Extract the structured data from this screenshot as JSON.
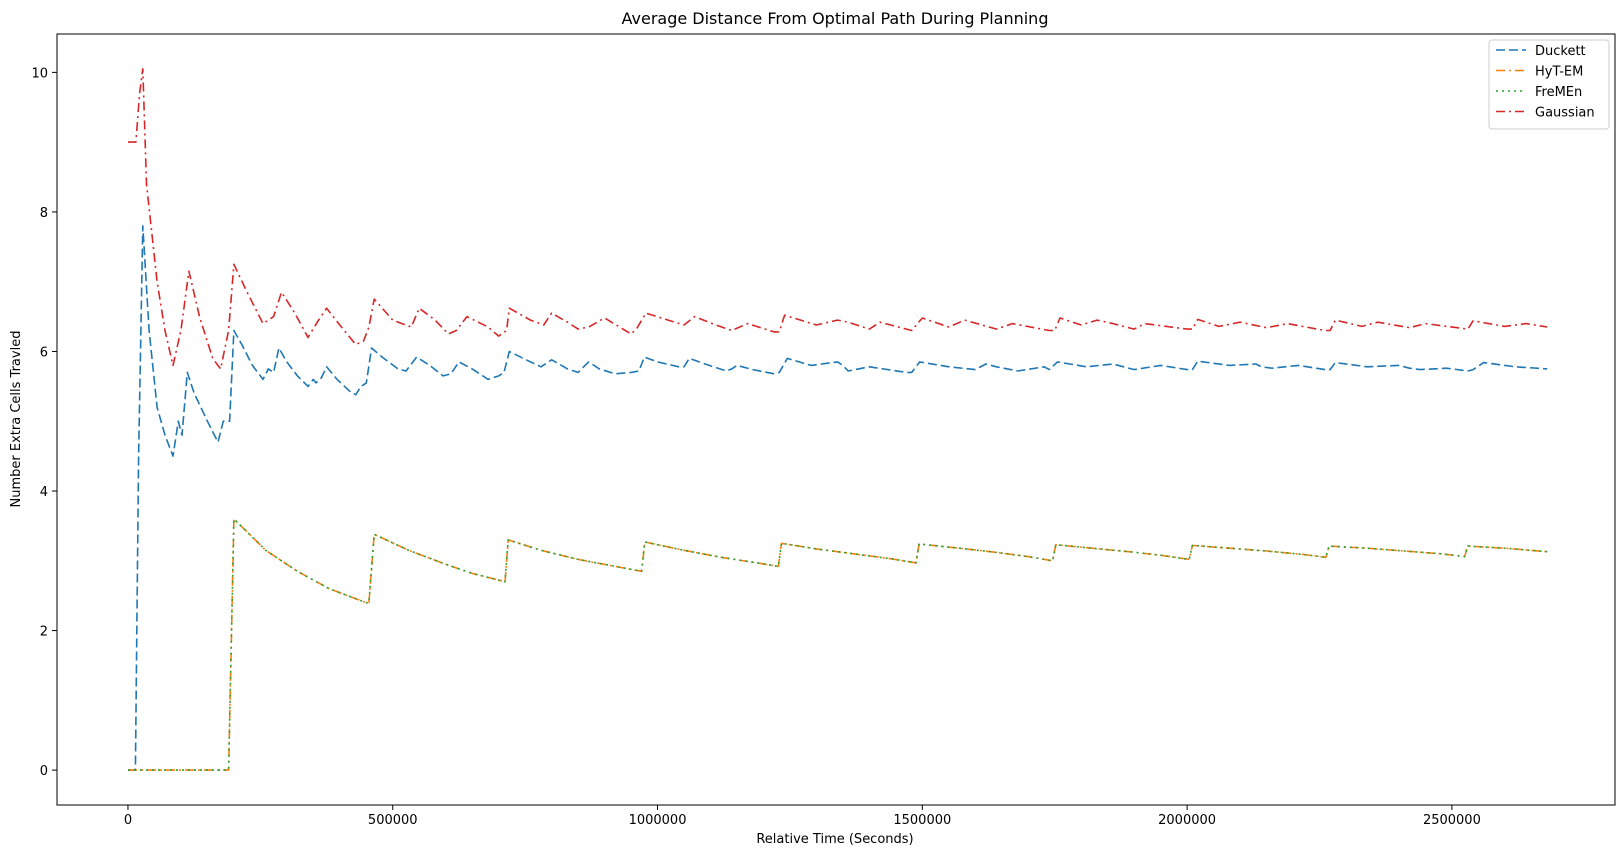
{
  "chart_data": {
    "type": "line",
    "title": "Average Distance From Optimal Path During Planning",
    "xlabel": "Relative Time (Seconds)",
    "ylabel": "Number Extra Cells Travled",
    "xlim": [
      -134000,
      2808000
    ],
    "ylim": [
      -0.5,
      10.55
    ],
    "xticks": [
      0,
      500000,
      1000000,
      1500000,
      2000000,
      2500000
    ],
    "xtick_labels": [
      "0",
      "500000",
      "1000000",
      "1500000",
      "2000000",
      "2500000"
    ],
    "yticks": [
      0,
      2,
      4,
      6,
      8,
      10
    ],
    "ytick_labels": [
      "0",
      "2",
      "4",
      "6",
      "8",
      "10"
    ],
    "grid": false,
    "legend_position": "top-right",
    "series": [
      {
        "name": "Duckett",
        "color": "#1f77b4",
        "dash": "dashed",
        "x": [
          0,
          14000,
          20000,
          28000,
          40000,
          55000,
          70000,
          85000,
          95000,
          102000,
          112000,
          125000,
          150000,
          170000,
          180000,
          185000,
          192000,
          200000,
          215000,
          235000,
          255000,
          265000,
          275000,
          285000,
          300000,
          320000,
          340000,
          350000,
          355000,
          365000,
          375000,
          395000,
          420000,
          430000,
          440000,
          450000,
          460000,
          480000,
          510000,
          525000,
          545000,
          570000,
          595000,
          610000,
          625000,
          650000,
          680000,
          700000,
          710000,
          720000,
          760000,
          780000,
          800000,
          830000,
          850000,
          870000,
          890000,
          920000,
          950000,
          965000,
          975000,
          1000000,
          1040000,
          1050000,
          1060000,
          1090000,
          1130000,
          1140000,
          1150000,
          1180000,
          1220000,
          1230000,
          1245000,
          1290000,
          1340000,
          1350000,
          1360000,
          1400000,
          1470000,
          1480000,
          1495000,
          1550000,
          1600000,
          1620000,
          1640000,
          1680000,
          1730000,
          1740000,
          1755000,
          1810000,
          1860000,
          1880000,
          1900000,
          1950000,
          2000000,
          2010000,
          2020000,
          2080000,
          2130000,
          2140000,
          2160000,
          2210000,
          2260000,
          2270000,
          2280000,
          2340000,
          2400000,
          2420000,
          2440000,
          2490000,
          2530000,
          2540000,
          2560000,
          2620000,
          2680000
        ],
        "y": [
          0,
          0,
          4.5,
          7.8,
          6.3,
          5.2,
          4.8,
          4.5,
          5.0,
          4.8,
          5.7,
          5.4,
          5.0,
          4.7,
          5.0,
          5.0,
          5.0,
          6.3,
          6.1,
          5.8,
          5.6,
          5.75,
          5.7,
          6.05,
          5.85,
          5.65,
          5.5,
          5.6,
          5.55,
          5.62,
          5.78,
          5.6,
          5.42,
          5.38,
          5.5,
          5.55,
          6.05,
          5.92,
          5.75,
          5.72,
          5.92,
          5.8,
          5.65,
          5.68,
          5.85,
          5.75,
          5.6,
          5.65,
          5.7,
          6.0,
          5.85,
          5.78,
          5.88,
          5.75,
          5.7,
          5.85,
          5.75,
          5.68,
          5.7,
          5.72,
          5.92,
          5.85,
          5.78,
          5.78,
          5.9,
          5.82,
          5.72,
          5.75,
          5.8,
          5.74,
          5.68,
          5.7,
          5.9,
          5.8,
          5.85,
          5.8,
          5.72,
          5.78,
          5.7,
          5.7,
          5.85,
          5.78,
          5.74,
          5.82,
          5.78,
          5.72,
          5.78,
          5.74,
          5.85,
          5.78,
          5.82,
          5.78,
          5.74,
          5.8,
          5.74,
          5.74,
          5.86,
          5.8,
          5.82,
          5.78,
          5.76,
          5.8,
          5.74,
          5.74,
          5.84,
          5.78,
          5.8,
          5.76,
          5.74,
          5.76,
          5.72,
          5.74,
          5.84,
          5.78,
          5.75
        ]
      },
      {
        "name": "HyT-EM",
        "color": "#ff7f0e",
        "dash": "dashdot",
        "x": [
          0,
          190000,
          200000,
          260000,
          320000,
          380000,
          450000,
          455000,
          465000,
          530000,
          600000,
          650000,
          712000,
          718000,
          780000,
          850000,
          920000,
          970000,
          976000,
          1050000,
          1120000,
          1180000,
          1228000,
          1234000,
          1300000,
          1370000,
          1440000,
          1488000,
          1494000,
          1570000,
          1640000,
          1700000,
          1746000,
          1752000,
          1820000,
          1890000,
          1950000,
          2004000,
          2010000,
          2080000,
          2150000,
          2220000,
          2262000,
          2268000,
          2340000,
          2410000,
          2480000,
          2524000,
          2530000,
          2600000,
          2680000
        ],
        "y": [
          0,
          0,
          3.6,
          3.15,
          2.85,
          2.6,
          2.4,
          2.4,
          3.38,
          3.15,
          2.95,
          2.82,
          2.7,
          3.3,
          3.15,
          3.02,
          2.92,
          2.85,
          3.27,
          3.15,
          3.05,
          2.98,
          2.92,
          3.25,
          3.17,
          3.1,
          3.03,
          2.97,
          3.24,
          3.18,
          3.12,
          3.06,
          3.0,
          3.23,
          3.18,
          3.13,
          3.08,
          3.02,
          3.22,
          3.18,
          3.14,
          3.09,
          3.05,
          3.21,
          3.18,
          3.14,
          3.1,
          3.06,
          3.21,
          3.18,
          3.13
        ]
      },
      {
        "name": "FreMEn",
        "color": "#2ca02c",
        "dash": "dotted",
        "x": [
          0,
          190000,
          200000,
          260000,
          320000,
          380000,
          450000,
          455000,
          465000,
          530000,
          600000,
          650000,
          712000,
          718000,
          780000,
          850000,
          920000,
          970000,
          976000,
          1050000,
          1120000,
          1180000,
          1228000,
          1234000,
          1300000,
          1370000,
          1440000,
          1488000,
          1494000,
          1570000,
          1640000,
          1700000,
          1746000,
          1752000,
          1820000,
          1890000,
          1950000,
          2004000,
          2010000,
          2080000,
          2150000,
          2220000,
          2262000,
          2268000,
          2340000,
          2410000,
          2480000,
          2524000,
          2530000,
          2600000,
          2680000
        ],
        "y": [
          0,
          0,
          3.6,
          3.15,
          2.85,
          2.6,
          2.4,
          2.4,
          3.38,
          3.15,
          2.95,
          2.82,
          2.7,
          3.3,
          3.15,
          3.02,
          2.92,
          2.85,
          3.27,
          3.15,
          3.05,
          2.98,
          2.92,
          3.25,
          3.17,
          3.1,
          3.03,
          2.97,
          3.24,
          3.18,
          3.12,
          3.06,
          3.0,
          3.23,
          3.18,
          3.13,
          3.08,
          3.02,
          3.22,
          3.18,
          3.14,
          3.09,
          3.05,
          3.21,
          3.18,
          3.14,
          3.1,
          3.06,
          3.21,
          3.18,
          3.13
        ]
      },
      {
        "name": "Gaussian",
        "color": "#d62728",
        "dash": "dashdot",
        "x": [
          0,
          10000,
          15000,
          22000,
          28000,
          35000,
          55000,
          70000,
          85000,
          100000,
          115000,
          135000,
          160000,
          175000,
          190000,
          200000,
          225000,
          255000,
          275000,
          290000,
          315000,
          340000,
          360000,
          375000,
          400000,
          430000,
          445000,
          455000,
          465000,
          500000,
          535000,
          550000,
          580000,
          605000,
          620000,
          640000,
          680000,
          700000,
          715000,
          720000,
          760000,
          785000,
          800000,
          830000,
          850000,
          870000,
          900000,
          950000,
          960000,
          978000,
          1020000,
          1050000,
          1070000,
          1110000,
          1140000,
          1170000,
          1220000,
          1230000,
          1240000,
          1300000,
          1340000,
          1360000,
          1400000,
          1420000,
          1480000,
          1500000,
          1550000,
          1580000,
          1640000,
          1670000,
          1740000,
          1750000,
          1760000,
          1800000,
          1830000,
          1860000,
          1900000,
          1920000,
          2000000,
          2010000,
          2020000,
          2060000,
          2100000,
          2150000,
          2190000,
          2260000,
          2270000,
          2280000,
          2330000,
          2360000,
          2420000,
          2450000,
          2530000,
          2540000,
          2600000,
          2640000,
          2680000
        ],
        "y": [
          9.0,
          9.0,
          9.0,
          9.7,
          10.05,
          8.4,
          7.0,
          6.3,
          5.8,
          6.3,
          7.15,
          6.5,
          5.9,
          5.75,
          6.3,
          7.25,
          6.85,
          6.4,
          6.5,
          6.85,
          6.55,
          6.2,
          6.45,
          6.62,
          6.38,
          6.1,
          6.15,
          6.35,
          6.75,
          6.45,
          6.35,
          6.62,
          6.45,
          6.25,
          6.3,
          6.5,
          6.35,
          6.22,
          6.3,
          6.62,
          6.45,
          6.38,
          6.55,
          6.42,
          6.32,
          6.35,
          6.48,
          6.25,
          6.32,
          6.55,
          6.45,
          6.38,
          6.5,
          6.38,
          6.3,
          6.4,
          6.28,
          6.28,
          6.52,
          6.38,
          6.45,
          6.42,
          6.32,
          6.42,
          6.3,
          6.48,
          6.35,
          6.45,
          6.32,
          6.4,
          6.3,
          6.3,
          6.48,
          6.38,
          6.45,
          6.4,
          6.32,
          6.4,
          6.32,
          6.32,
          6.46,
          6.36,
          6.42,
          6.34,
          6.4,
          6.3,
          6.3,
          6.45,
          6.36,
          6.42,
          6.34,
          6.4,
          6.32,
          6.44,
          6.36,
          6.4,
          6.35
        ]
      }
    ]
  }
}
